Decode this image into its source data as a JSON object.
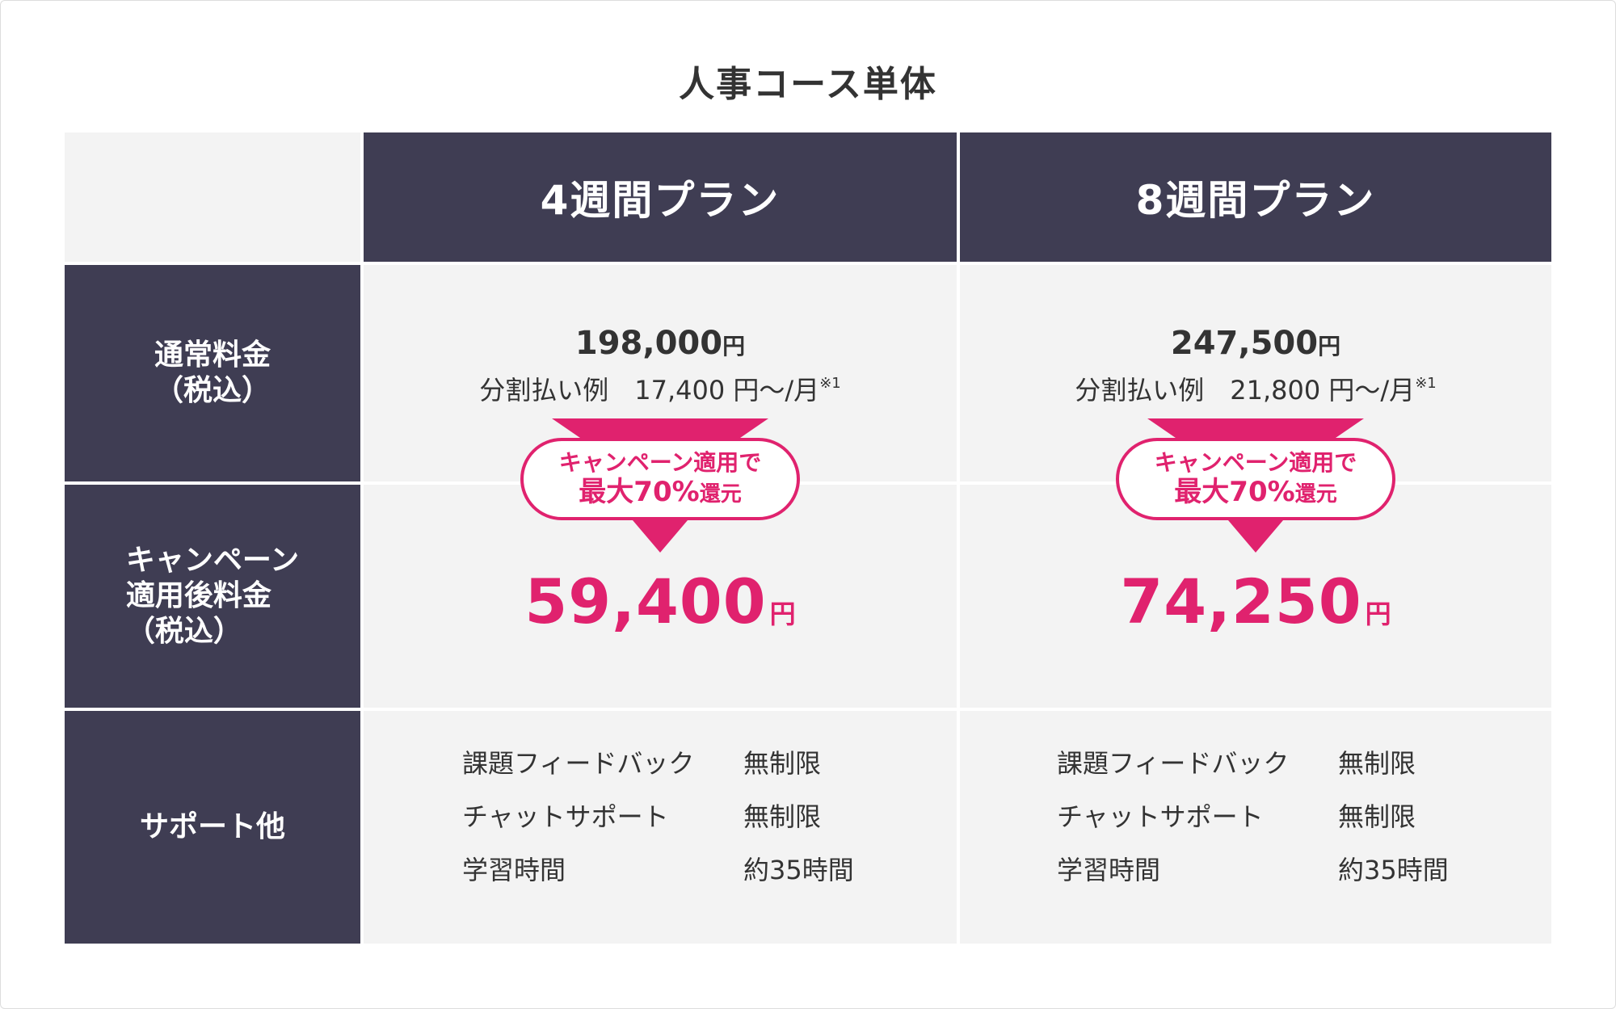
{
  "title": "人事コース単体",
  "plans": [
    {
      "name": "4週間プラン",
      "normal_price": "198,000",
      "normal_price_unit": "円",
      "installment": "分割払い例　17,400 円〜/月",
      "installment_note": "※1",
      "badge_line1": "キャンペーン適用で",
      "badge_line2_main": "最大70%",
      "badge_line2_suffix": "還元",
      "campaign_price": "59,400",
      "campaign_price_unit": "円",
      "support": [
        {
          "item": "課題フィードバック",
          "value": "無制限"
        },
        {
          "item": "チャットサポート",
          "value": "無制限"
        },
        {
          "item": "学習時間",
          "value": "約35時間"
        }
      ]
    },
    {
      "name": "8週間プラン",
      "normal_price": "247,500",
      "normal_price_unit": "円",
      "installment": "分割払い例　21,800 円〜/月",
      "installment_note": "※1",
      "badge_line1": "キャンペーン適用で",
      "badge_line2_main": "最大70%",
      "badge_line2_suffix": "還元",
      "campaign_price": "74,250",
      "campaign_price_unit": "円",
      "support": [
        {
          "item": "課題フィードバック",
          "value": "無制限"
        },
        {
          "item": "チャットサポート",
          "value": "無制限"
        },
        {
          "item": "学習時間",
          "value": "約35時間"
        }
      ]
    }
  ],
  "row_labels": {
    "normal_line1": "通常料金",
    "normal_line2": "（税込）",
    "campaign_line1": "キャンペーン",
    "campaign_line2": "適用後料金",
    "campaign_line3": "（税込）",
    "support": "サポート他"
  },
  "colors": {
    "header_bg": "#3f3d53",
    "cell_bg": "#f3f3f3",
    "accent": "#e0226e"
  }
}
